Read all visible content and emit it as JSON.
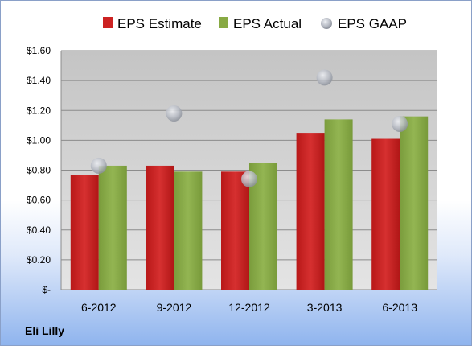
{
  "company": "Eli Lilly",
  "chart_data": {
    "type": "bar",
    "categories": [
      "6-2012",
      "9-2012",
      "12-2012",
      "3-2013",
      "6-2013"
    ],
    "series": [
      {
        "name": "EPS Estimate",
        "kind": "bar",
        "color": "#cc2222",
        "values": [
          0.77,
          0.83,
          0.79,
          1.05,
          1.01
        ]
      },
      {
        "name": "EPS Actual",
        "kind": "bar",
        "color": "#88aa44",
        "values": [
          0.83,
          0.79,
          0.85,
          1.14,
          1.16
        ]
      },
      {
        "name": "EPS GAAP",
        "kind": "scatter",
        "color": "#b8bcc4",
        "values": [
          0.83,
          1.18,
          0.74,
          1.42,
          1.11
        ]
      }
    ],
    "yticks": [
      {
        "value": 0,
        "label": "$-"
      },
      {
        "value": 0.2,
        "label": "$0.20"
      },
      {
        "value": 0.4,
        "label": "$0.40"
      },
      {
        "value": 0.6,
        "label": "$0.60"
      },
      {
        "value": 0.8,
        "label": "$0.80"
      },
      {
        "value": 1.0,
        "label": "$1.00"
      },
      {
        "value": 1.2,
        "label": "$1.20"
      },
      {
        "value": 1.4,
        "label": "$1.40"
      },
      {
        "value": 1.6,
        "label": "$1.60"
      }
    ],
    "ylim": [
      0,
      1.6
    ],
    "grid": true,
    "legend_position": "top"
  }
}
